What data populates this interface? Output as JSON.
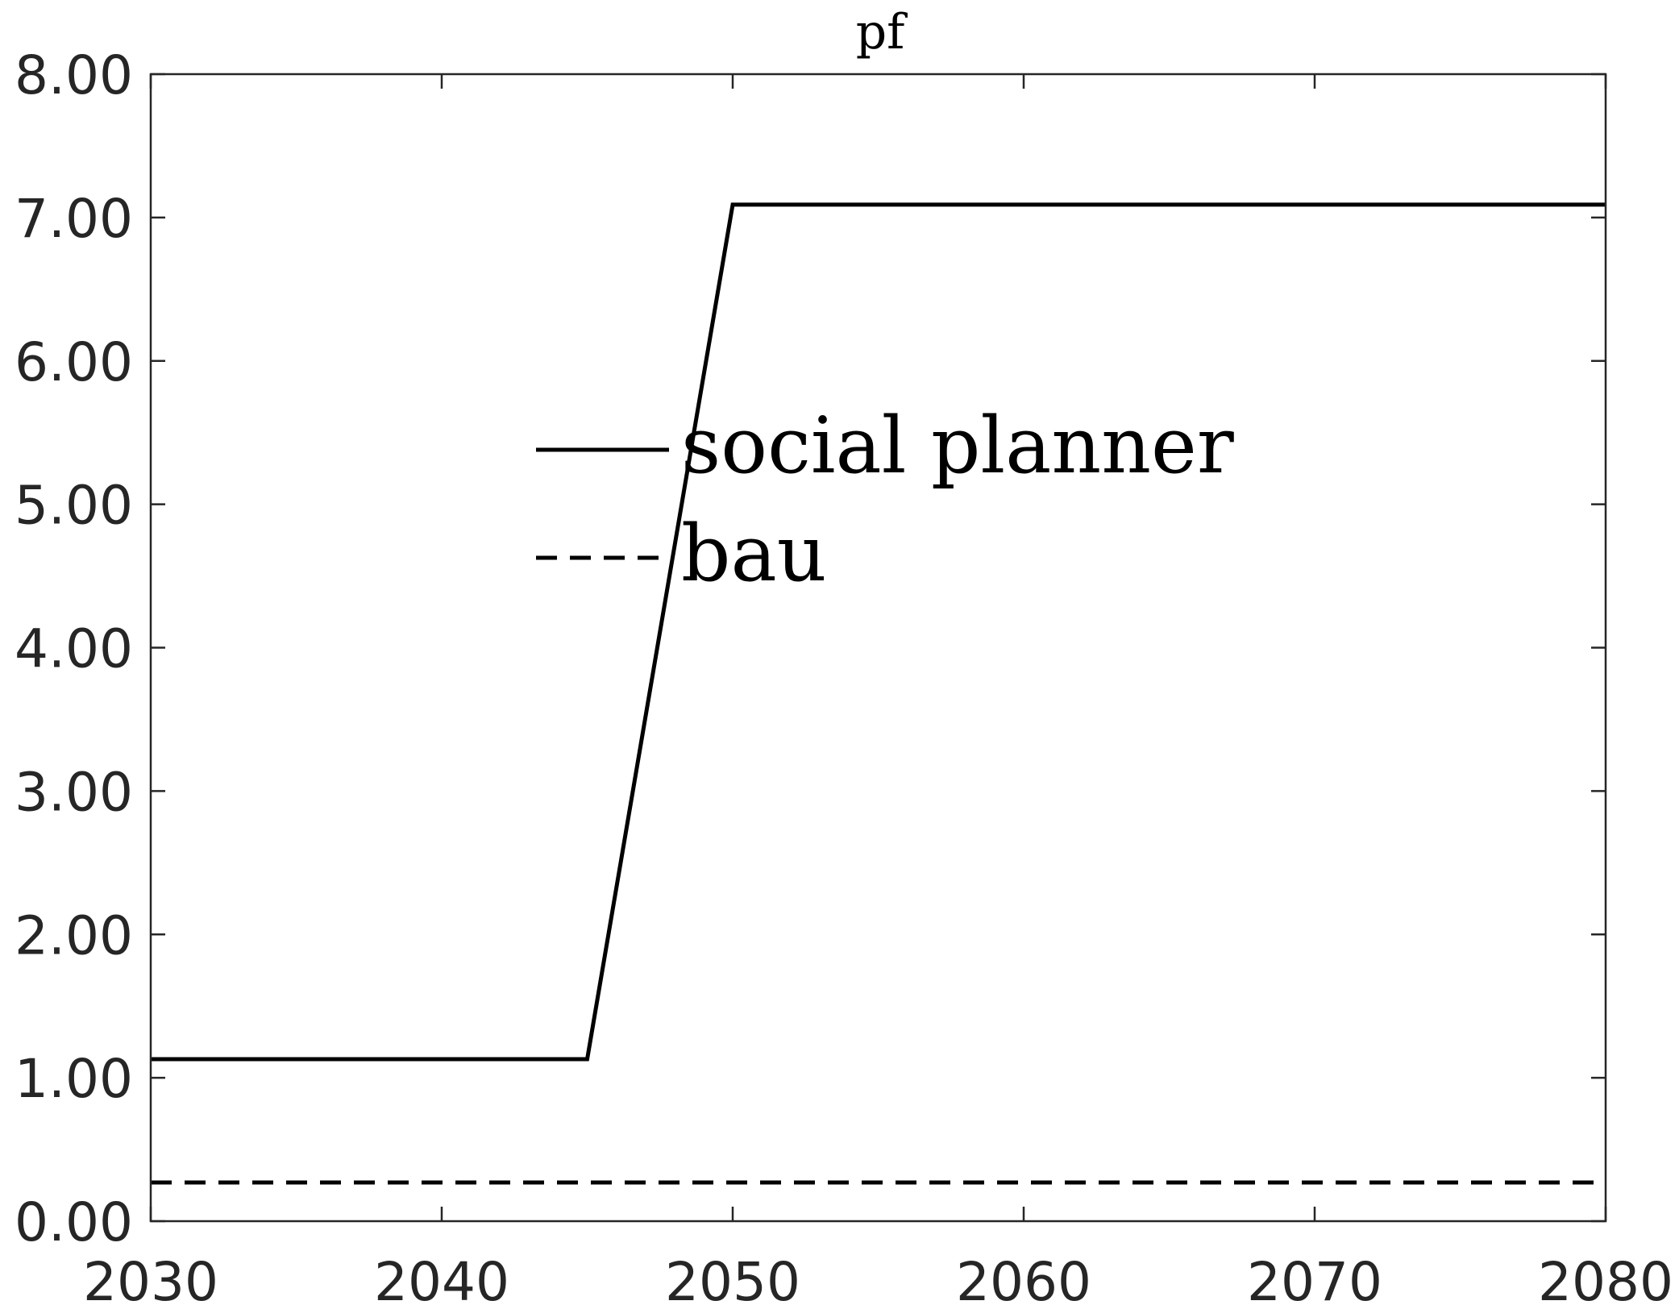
{
  "chart_data": {
    "type": "line",
    "title": "pf",
    "xlabel": "",
    "ylabel": "",
    "xlim": [
      2030,
      2080
    ],
    "ylim": [
      0,
      8
    ],
    "x_ticks": [
      2030,
      2040,
      2050,
      2060,
      2070,
      2080
    ],
    "x_tick_labels": [
      "2030",
      "2040",
      "2050",
      "2060",
      "2070",
      "2080"
    ],
    "y_ticks": [
      0,
      1,
      2,
      3,
      4,
      5,
      6,
      7,
      8
    ],
    "y_tick_labels": [
      "0.00",
      "1.00",
      "2.00",
      "3.00",
      "4.00",
      "5.00",
      "6.00",
      "7.00",
      "8.00"
    ],
    "grid": false,
    "legend_position": "center-left",
    "series": [
      {
        "name": "social planner",
        "style": "solid",
        "color": "#000000",
        "x": [
          2030,
          2045,
          2050,
          2080
        ],
        "y": [
          1.13,
          1.13,
          7.09,
          7.09
        ]
      },
      {
        "name": "bau",
        "style": "dashed",
        "color": "#000000",
        "x": [
          2030,
          2080
        ],
        "y": [
          0.27,
          0.27
        ]
      }
    ]
  }
}
